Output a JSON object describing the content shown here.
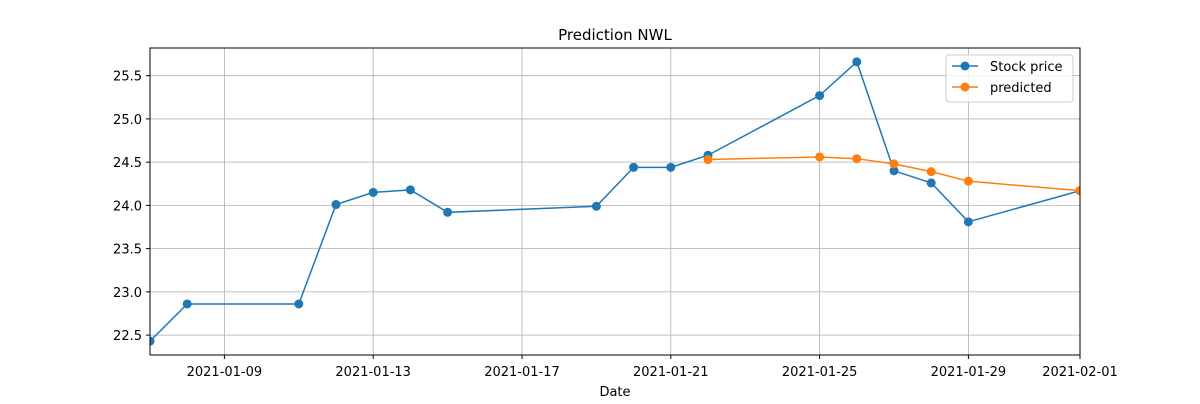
{
  "chart_data": {
    "type": "line",
    "title": "Prediction NWL",
    "xlabel": "Date",
    "ylabel": "",
    "xlim": [
      "2021-01-07",
      "2021-02-01"
    ],
    "ylim": [
      22.27,
      25.82
    ],
    "grid": true,
    "legend_position": "top-right",
    "x_ticks": [
      "2021-01-09",
      "2021-01-13",
      "2021-01-17",
      "2021-01-21",
      "2021-01-25",
      "2021-01-29",
      "2021-02-01"
    ],
    "y_ticks": [
      22.5,
      23.0,
      23.5,
      24.0,
      24.5,
      25.0,
      25.5
    ],
    "y_tick_labels": [
      "22.5",
      "23.0",
      "23.5",
      "24.0",
      "24.5",
      "25.0",
      "25.5"
    ],
    "series": [
      {
        "name": "Stock price",
        "color": "#1f77b4",
        "marker": "circle",
        "x": [
          "2021-01-07",
          "2021-01-08",
          "2021-01-11",
          "2021-01-12",
          "2021-01-13",
          "2021-01-14",
          "2021-01-15",
          "2021-01-19",
          "2021-01-20",
          "2021-01-21",
          "2021-01-22",
          "2021-01-25",
          "2021-01-26",
          "2021-01-27",
          "2021-01-28",
          "2021-01-29",
          "2021-02-01"
        ],
        "values": [
          22.43,
          22.86,
          22.86,
          24.01,
          24.15,
          24.18,
          23.92,
          23.99,
          24.44,
          24.44,
          24.58,
          25.27,
          25.66,
          24.4,
          24.26,
          23.81,
          24.17
        ]
      },
      {
        "name": "predicted",
        "color": "#ff7f0e",
        "marker": "circle",
        "x": [
          "2021-01-22",
          "2021-01-25",
          "2021-01-26",
          "2021-01-27",
          "2021-01-28",
          "2021-01-29",
          "2021-02-01"
        ],
        "values": [
          24.53,
          24.56,
          24.54,
          24.48,
          24.39,
          24.28,
          24.17
        ]
      }
    ]
  }
}
